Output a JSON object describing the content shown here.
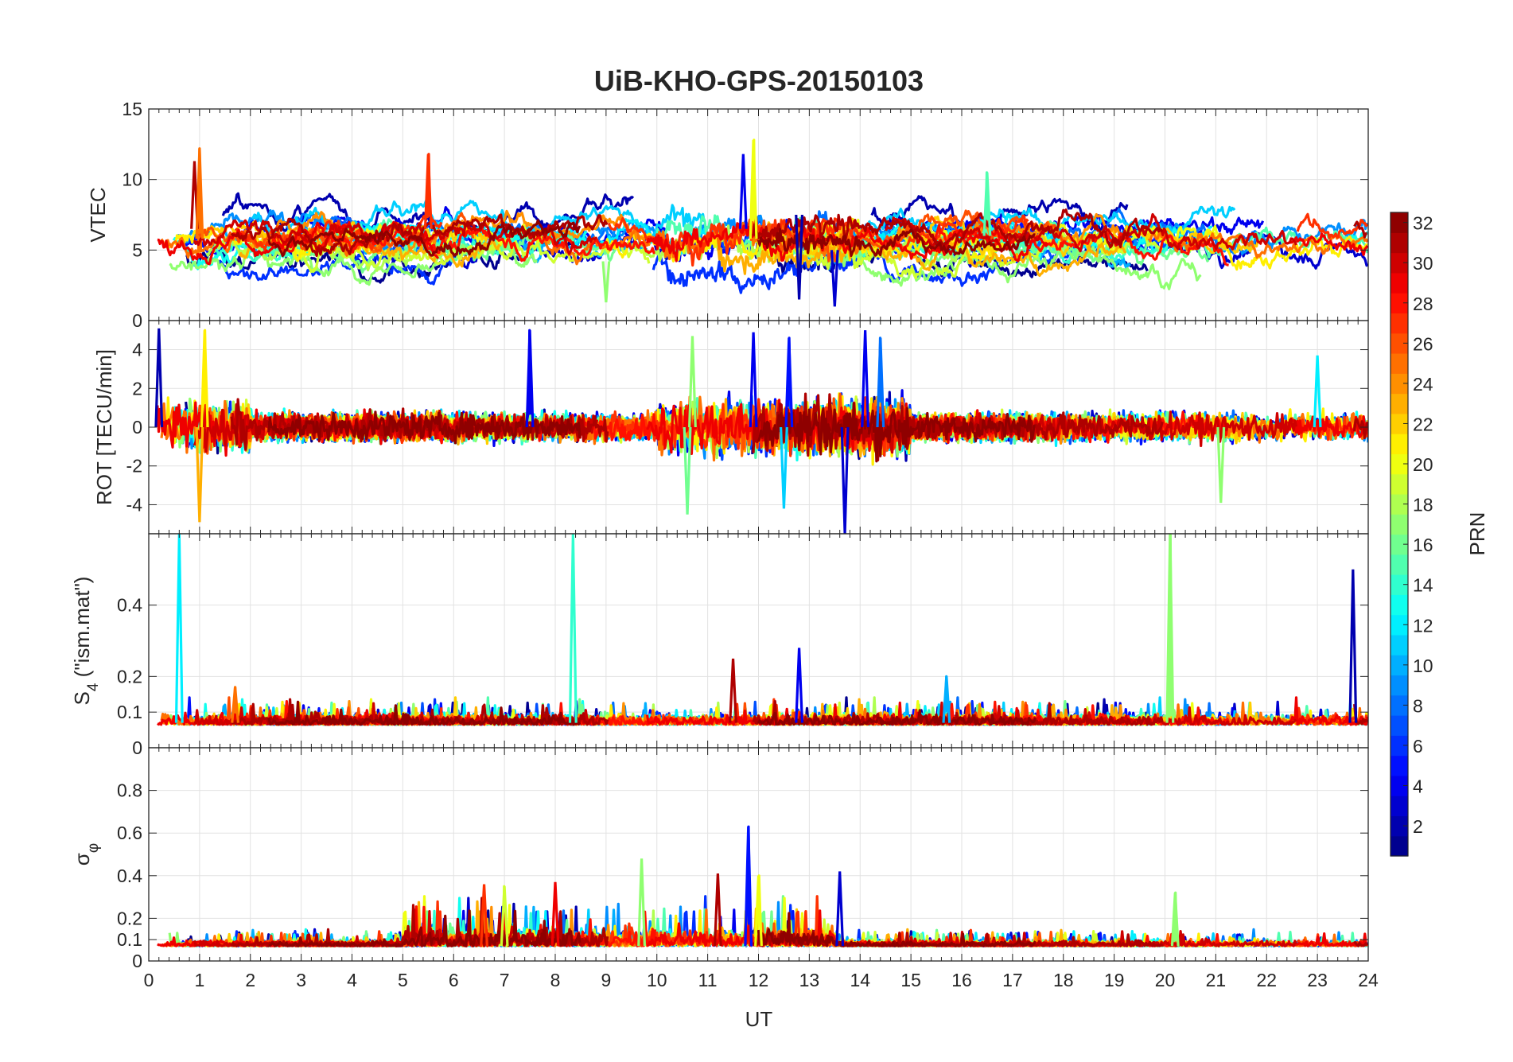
{
  "chart_data": {
    "type": "line",
    "title": "UiB-KHO-GPS-20150103",
    "xlabel": "UT",
    "xlim": [
      0,
      24
    ],
    "x_ticks": [
      "0",
      "1",
      "2",
      "3",
      "4",
      "5",
      "6",
      "7",
      "8",
      "9",
      "10",
      "11",
      "12",
      "13",
      "14",
      "15",
      "16",
      "17",
      "18",
      "19",
      "20",
      "21",
      "22",
      "23",
      "24"
    ],
    "grid": true,
    "colorbar": {
      "label": "PRN",
      "range": [
        1,
        32
      ],
      "colormap": "jet",
      "ticks": [
        "2",
        "4",
        "6",
        "8",
        "10",
        "12",
        "14",
        "16",
        "18",
        "20",
        "22",
        "24",
        "26",
        "28",
        "30",
        "32"
      ]
    },
    "panels": [
      {
        "id": "vtec",
        "ylabel": "VTEC",
        "ylim": [
          0,
          15
        ],
        "y_ticks": [
          "0",
          "5",
          "10",
          "15"
        ],
        "series_summary": "32 PRN traces, mostly 2–12 TECU, peaks ~12.8 near 11.9 UT"
      },
      {
        "id": "rot",
        "ylabel": "ROT [TECU/min]",
        "ylim": [
          -5.5,
          5.5
        ],
        "y_ticks": [
          "-4",
          "-2",
          "0",
          "2",
          "4"
        ],
        "series_summary": "Fluctuations around 0, spikes to ±5 between 10.5 and 14.5 UT"
      },
      {
        "id": "s4",
        "ylabel": "S4 (\"ism.mat\")",
        "ylabel_main": "S",
        "ylabel_sub": "4",
        "ylabel_rest": " (\"ism.mat\")",
        "ylim": [
          0,
          0.6
        ],
        "y_ticks": [
          "0",
          "0.1",
          "0.2",
          "0.4"
        ],
        "series_summary": "Baseline 0.05–0.1, spikes to 0.6 near 0.6, 8.35 and 20.1 UT, 0.5 near 23.7 UT"
      },
      {
        "id": "sigma",
        "ylabel": "σφ",
        "ylabel_main": "σ",
        "ylabel_sub": "φ",
        "ylim": [
          0,
          1
        ],
        "y_ticks": [
          "0",
          "0.1",
          "0.2",
          "0.4",
          "0.6",
          "0.8"
        ],
        "series_summary": "Baseline 0.05–0.1, peaks ~0.63 near 11.8 UT, ~0.48 near 9.7 UT"
      }
    ],
    "spikes": {
      "vtec": [
        [
          0.9,
          11.3,
          31
        ],
        [
          1.0,
          12.2,
          25
        ],
        [
          5.5,
          11.8,
          27
        ],
        [
          11.9,
          12.8,
          20
        ],
        [
          11.7,
          11.8,
          4
        ],
        [
          12.8,
          1.5,
          2
        ],
        [
          13.5,
          1.0,
          3
        ],
        [
          16.5,
          10.5,
          15
        ],
        [
          9.0,
          1.3,
          17
        ]
      ],
      "rot": [
        [
          0.2,
          5.1,
          2
        ],
        [
          1.1,
          5.0,
          21
        ],
        [
          1.0,
          -4.9,
          23
        ],
        [
          7.5,
          5.0,
          4
        ],
        [
          10.7,
          4.7,
          17
        ],
        [
          11.9,
          4.9,
          4
        ],
        [
          12.6,
          4.6,
          5
        ],
        [
          13.7,
          -5.5,
          3
        ],
        [
          14.1,
          5.0,
          4
        ],
        [
          14.4,
          4.6,
          8
        ],
        [
          12.5,
          -4.2,
          11
        ],
        [
          10.6,
          -4.5,
          16
        ],
        [
          23.0,
          3.7,
          12
        ],
        [
          21.1,
          -3.9,
          17
        ]
      ],
      "s4": [
        [
          0.6,
          0.6,
          12
        ],
        [
          8.35,
          0.6,
          14
        ],
        [
          20.1,
          0.6,
          17
        ],
        [
          23.7,
          0.5,
          2
        ],
        [
          12.8,
          0.28,
          4
        ],
        [
          11.5,
          0.25,
          31
        ],
        [
          15.7,
          0.2,
          10
        ],
        [
          1.7,
          0.17,
          25
        ]
      ],
      "sigma": [
        [
          11.8,
          0.63,
          5
        ],
        [
          9.7,
          0.48,
          17
        ],
        [
          13.6,
          0.42,
          3
        ],
        [
          8.0,
          0.37,
          29
        ],
        [
          11.2,
          0.41,
          31
        ],
        [
          12.0,
          0.4,
          20
        ],
        [
          20.2,
          0.32,
          17
        ],
        [
          7.0,
          0.35,
          19
        ],
        [
          6.6,
          0.36,
          27
        ]
      ]
    },
    "series_levels": {
      "vtec_base": [
        [
          1,
          4.5
        ],
        [
          2,
          7.5
        ],
        [
          3,
          5.0
        ],
        [
          4,
          6.5
        ],
        [
          5,
          6.0
        ],
        [
          6,
          4.0
        ],
        [
          7,
          6.0
        ],
        [
          8,
          6.5
        ],
        [
          9,
          6.2
        ],
        [
          10,
          5.5
        ],
        [
          11,
          7.0
        ],
        [
          12,
          6.0
        ],
        [
          13,
          5.8
        ],
        [
          14,
          5.5
        ],
        [
          15,
          6.0
        ],
        [
          16,
          5.2
        ],
        [
          17,
          4.2
        ],
        [
          18,
          5.0
        ],
        [
          19,
          4.8
        ],
        [
          20,
          5.8
        ],
        [
          21,
          5.5
        ],
        [
          22,
          6.0
        ],
        [
          23,
          5.0
        ],
        [
          24,
          6.5
        ],
        [
          25,
          5.8
        ],
        [
          26,
          6.2
        ],
        [
          27,
          6.5
        ],
        [
          28,
          5.6
        ],
        [
          29,
          5.5
        ],
        [
          30,
          6.0
        ],
        [
          31,
          6.5
        ],
        [
          32,
          5.8
        ]
      ]
    }
  }
}
